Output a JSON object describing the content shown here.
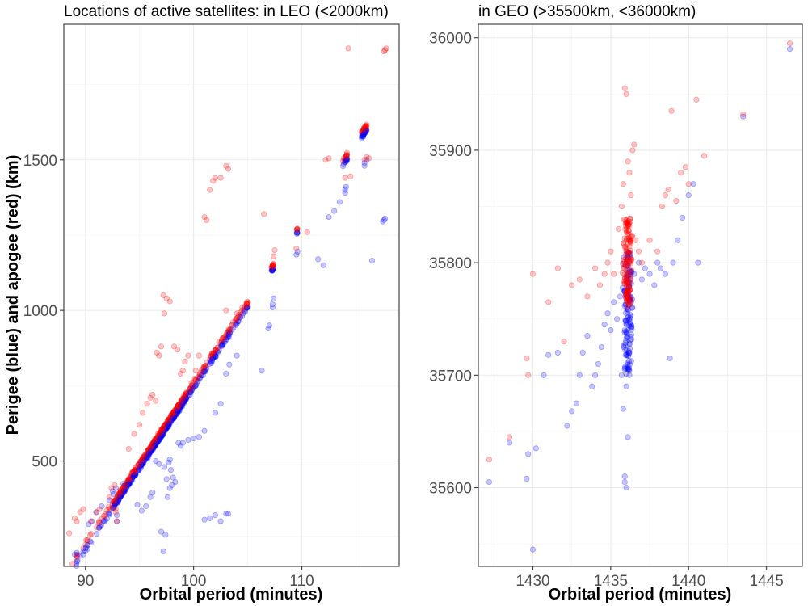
{
  "figure": {
    "y_axis_title": "Perigee (blue) and apogee (red) (km)"
  },
  "colors": {
    "perigee": "#0000ff",
    "apogee": "#ff0000"
  },
  "chart_data": [
    {
      "type": "scatter",
      "title": "Locations of active satellites: in LEO (<2000km)",
      "xlabel": "Orbital period (minutes)",
      "ylabel": "Perigee (blue) and apogee (red) (km)",
      "xlim": [
        88,
        119
      ],
      "ylim": [
        150,
        1950
      ],
      "x_ticks": [
        90,
        100,
        110
      ],
      "y_ticks": [
        500,
        1000,
        1500
      ],
      "grid": true,
      "clusters": [
        {
          "x0": 92.5,
          "x1": 99.5,
          "n": 260,
          "jitter": 8
        },
        {
          "x0": 99.5,
          "x1": 103.5,
          "n": 60,
          "jitter": 10
        },
        {
          "x0": 103.2,
          "x1": 105.2,
          "n": 25,
          "jitter": 8
        },
        {
          "x0": 107.2,
          "x1": 107.4,
          "n": 10,
          "jitter": 6
        },
        {
          "x0": 109.5,
          "x1": 109.6,
          "n": 5,
          "jitter": 4
        },
        {
          "x0": 113.8,
          "x1": 114.2,
          "n": 12,
          "jitter": 8
        },
        {
          "x0": 115.5,
          "x1": 116.0,
          "n": 25,
          "jitter": 8
        },
        {
          "x0": 88.5,
          "x1": 92.5,
          "n": 25,
          "jitter": 14
        }
      ],
      "series": [
        {
          "name": "Perigee",
          "points": [
            [
              89,
              190
            ],
            [
              89.2,
              195
            ],
            [
              89.5,
              185
            ],
            [
              89.8,
              190
            ],
            [
              90,
              200
            ],
            [
              90.3,
              290
            ],
            [
              90.6,
              300
            ],
            [
              91,
              330
            ],
            [
              91.5,
              350
            ],
            [
              92.2,
              370
            ],
            [
              92.5,
              400
            ],
            [
              92.6,
              390
            ],
            [
              92.8,
              410
            ],
            [
              92.9,
              300
            ],
            [
              92.9,
              320
            ],
            [
              93.5,
              425
            ],
            [
              94.8,
              355
            ],
            [
              95.2,
              335
            ],
            [
              95.6,
              350
            ],
            [
              96,
              380
            ],
            [
              96.2,
              395
            ],
            [
              96.5,
              500
            ],
            [
              96.8,
              490
            ],
            [
              97,
              265
            ],
            [
              97.2,
              200
            ],
            [
              97.4,
              255
            ],
            [
              97.3,
              480
            ],
            [
              97.5,
              440
            ],
            [
              97.6,
              380
            ],
            [
              97.8,
              410
            ],
            [
              98,
              420
            ],
            [
              98.3,
              430
            ],
            [
              98.6,
              560
            ],
            [
              98.8,
              550
            ],
            [
              97.7,
              495
            ],
            [
              97.8,
              505
            ],
            [
              97.9,
              470
            ],
            [
              98.1,
              445
            ],
            [
              101,
              305
            ],
            [
              101.5,
              310
            ],
            [
              102,
              320
            ],
            [
              102.5,
              300
            ],
            [
              103,
              325
            ],
            [
              103.2,
              325
            ],
            [
              99,
              560
            ],
            [
              99.5,
              570
            ],
            [
              100,
              575
            ],
            [
              100.5,
              580
            ],
            [
              101,
              600
            ],
            [
              102,
              660
            ],
            [
              102.5,
              690
            ],
            [
              103,
              790
            ],
            [
              103.3,
              820
            ],
            [
              104,
              850
            ],
            [
              106.3,
              800
            ],
            [
              107.3,
              1010
            ],
            [
              107.3,
              1020
            ],
            [
              107.4,
              1040
            ],
            [
              106.9,
              940
            ],
            [
              107,
              950
            ],
            [
              109.5,
              1185
            ],
            [
              109.6,
              1195
            ],
            [
              111.5,
              1170
            ],
            [
              112,
              1150
            ],
            [
              112.5,
              1310
            ],
            [
              113,
              1330
            ],
            [
              113.5,
              1360
            ],
            [
              114,
              1390
            ],
            [
              114,
              1400
            ],
            [
              114.1,
              1410
            ],
            [
              115.8,
              1480
            ],
            [
              115.8,
              1490
            ],
            [
              116,
              1500
            ],
            [
              116.5,
              1165
            ],
            [
              117.5,
              1295
            ],
            [
              117.6,
              1300
            ],
            [
              117.7,
              1305
            ]
          ]
        },
        {
          "name": "Apogee",
          "points": [
            [
              88.5,
              260
            ],
            [
              89,
              310
            ],
            [
              89.2,
              300
            ],
            [
              89.5,
              330
            ],
            [
              89.8,
              340
            ],
            [
              90.5,
              300
            ],
            [
              91,
              330
            ],
            [
              91.3,
              340
            ],
            [
              92.2,
              380
            ],
            [
              92.4,
              410
            ],
            [
              92.7,
              420
            ],
            [
              92.8,
              330
            ],
            [
              92.8,
              340
            ],
            [
              92.9,
              300
            ],
            [
              94,
              540
            ],
            [
              94.5,
              590
            ],
            [
              95,
              620
            ],
            [
              95.3,
              660
            ],
            [
              95.7,
              690
            ],
            [
              96,
              710
            ],
            [
              96.2,
              720
            ],
            [
              96.5,
              700
            ],
            [
              96.6,
              860
            ],
            [
              96.8,
              850
            ],
            [
              97,
              880
            ],
            [
              97.2,
              1050
            ],
            [
              97.3,
              990
            ],
            [
              97.5,
              1040
            ],
            [
              97.8,
              1030
            ],
            [
              98.2,
              880
            ],
            [
              98.5,
              870
            ],
            [
              98.8,
              790
            ],
            [
              99,
              800
            ],
            [
              99.2,
              830
            ],
            [
              99.5,
              850
            ],
            [
              99.8,
              760
            ],
            [
              100.2,
              800
            ],
            [
              100.5,
              850
            ],
            [
              101,
              1310
            ],
            [
              101.2,
              1300
            ],
            [
              101.5,
              1400
            ],
            [
              101.8,
              1430
            ],
            [
              102,
              1440
            ],
            [
              102.5,
              1440
            ],
            [
              103,
              1480
            ],
            [
              103.2,
              1470
            ],
            [
              103,
              1000
            ],
            [
              103.5,
              950
            ],
            [
              104,
              990
            ],
            [
              104.5,
              1010
            ],
            [
              105,
              1020
            ],
            [
              106.5,
              1320
            ],
            [
              107.3,
              1150
            ],
            [
              107.4,
              1180
            ],
            [
              107.5,
              1200
            ],
            [
              109.5,
              1205
            ],
            [
              110.5,
              1260
            ],
            [
              112.2,
              1500
            ],
            [
              112.5,
              1505
            ],
            [
              114,
              1440
            ],
            [
              114.5,
              1445
            ],
            [
              115.8,
              1500
            ],
            [
              116,
              1510
            ],
            [
              116.2,
              1505
            ],
            [
              114.3,
              1870
            ],
            [
              117.6,
              1860
            ],
            [
              117.7,
              1865
            ],
            [
              117.8,
              1870
            ]
          ]
        }
      ]
    },
    {
      "type": "scatter",
      "title": "in GEO (>35500km, <36000km)",
      "xlabel": "Orbital period (minutes)",
      "ylabel": "",
      "xlim": [
        1426.5,
        1447.3
      ],
      "ylim": [
        35530,
        36012
      ],
      "x_ticks": [
        1430,
        1435,
        1440,
        1445
      ],
      "y_ticks": [
        35600,
        35700,
        35800,
        35900,
        36000
      ],
      "grid": true,
      "series": [
        {
          "name": "Perigee",
          "points": [
            [
              1427.2,
              35605
            ],
            [
              1428.5,
              35640
            ],
            [
              1429.6,
              35608
            ],
            [
              1429.7,
              35630
            ],
            [
              1430,
              35545
            ],
            [
              1430.2,
              35635
            ],
            [
              1430.7,
              35700
            ],
            [
              1431,
              35718
            ],
            [
              1431.6,
              35720
            ],
            [
              1432.2,
              35655
            ],
            [
              1432.5,
              35668
            ],
            [
              1432.8,
              35675
            ],
            [
              1433,
              35700
            ],
            [
              1433.2,
              35720
            ],
            [
              1433.5,
              35735
            ],
            [
              1433.8,
              35690
            ],
            [
              1434,
              35700
            ],
            [
              1434.2,
              35710
            ],
            [
              1434.4,
              35725
            ],
            [
              1434.6,
              35745
            ],
            [
              1434.8,
              35755
            ],
            [
              1435,
              35740
            ],
            [
              1435.2,
              35765
            ],
            [
              1435.4,
              35750
            ],
            [
              1435.6,
              35770
            ],
            [
              1435.7,
              35700
            ],
            [
              1435.8,
              35670
            ],
            [
              1435.9,
              35610
            ],
            [
              1435.9,
              35605
            ],
            [
              1436,
              35600
            ],
            [
              1436,
              35690
            ],
            [
              1436.1,
              35645
            ],
            [
              1436.2,
              35700
            ],
            [
              1436.2,
              35720
            ],
            [
              1436.3,
              35745
            ],
            [
              1436.4,
              35760
            ],
            [
              1436.5,
              35790
            ],
            [
              1436.8,
              35800
            ],
            [
              1437,
              35785
            ],
            [
              1437.2,
              35795
            ],
            [
              1437.5,
              35790
            ],
            [
              1437.8,
              35780
            ],
            [
              1438,
              35800
            ],
            [
              1438.2,
              35795
            ],
            [
              1438.5,
              35790
            ],
            [
              1438.8,
              35715
            ],
            [
              1439,
              35800
            ],
            [
              1439.3,
              35820
            ],
            [
              1439.6,
              35840
            ],
            [
              1440,
              35860
            ],
            [
              1440.3,
              35870
            ],
            [
              1440.6,
              35800
            ],
            [
              1443.5,
              35930
            ],
            [
              1446.5,
              35990
            ]
          ]
        },
        {
          "name": "Apogee",
          "points": [
            [
              1427.2,
              35625
            ],
            [
              1428.5,
              35645
            ],
            [
              1429.6,
              35715
            ],
            [
              1429.7,
              35700
            ],
            [
              1430,
              35790
            ],
            [
              1431,
              35765
            ],
            [
              1431.6,
              35795
            ],
            [
              1432,
              35730
            ],
            [
              1432.5,
              35780
            ],
            [
              1433,
              35785
            ],
            [
              1433.5,
              35770
            ],
            [
              1434,
              35795
            ],
            [
              1434.3,
              35780
            ],
            [
              1434.6,
              35790
            ],
            [
              1434.8,
              35800
            ],
            [
              1435,
              35810
            ],
            [
              1435.2,
              35790
            ],
            [
              1435.5,
              35830
            ],
            [
              1435.7,
              35850
            ],
            [
              1435.8,
              35870
            ],
            [
              1435.9,
              35955
            ],
            [
              1436,
              35950
            ],
            [
              1436.1,
              35890
            ],
            [
              1436.2,
              35880
            ],
            [
              1436.3,
              35860
            ],
            [
              1436.4,
              35900
            ],
            [
              1436.5,
              35905
            ],
            [
              1436.6,
              35820
            ],
            [
              1436.8,
              35810
            ],
            [
              1437,
              35800
            ],
            [
              1437.5,
              35820
            ],
            [
              1438,
              35810
            ],
            [
              1438.3,
              35850
            ],
            [
              1438.5,
              35860
            ],
            [
              1438.7,
              35865
            ],
            [
              1438.9,
              35935
            ],
            [
              1439.2,
              35855
            ],
            [
              1439.5,
              35880
            ],
            [
              1439.8,
              35885
            ],
            [
              1440,
              35870
            ],
            [
              1440.5,
              35945
            ],
            [
              1441,
              35895
            ],
            [
              1443.5,
              35932
            ],
            [
              1446.5,
              35995
            ]
          ]
        }
      ],
      "clusters": [
        {
          "x": 1436.1,
          "y0": 35700,
          "y1": 35810,
          "n": 140,
          "jitter_x": 0.28
        },
        {
          "x": 1436.1,
          "y0": 35760,
          "y1": 35840,
          "n": 140,
          "jitter_x": 0.28
        }
      ]
    }
  ]
}
